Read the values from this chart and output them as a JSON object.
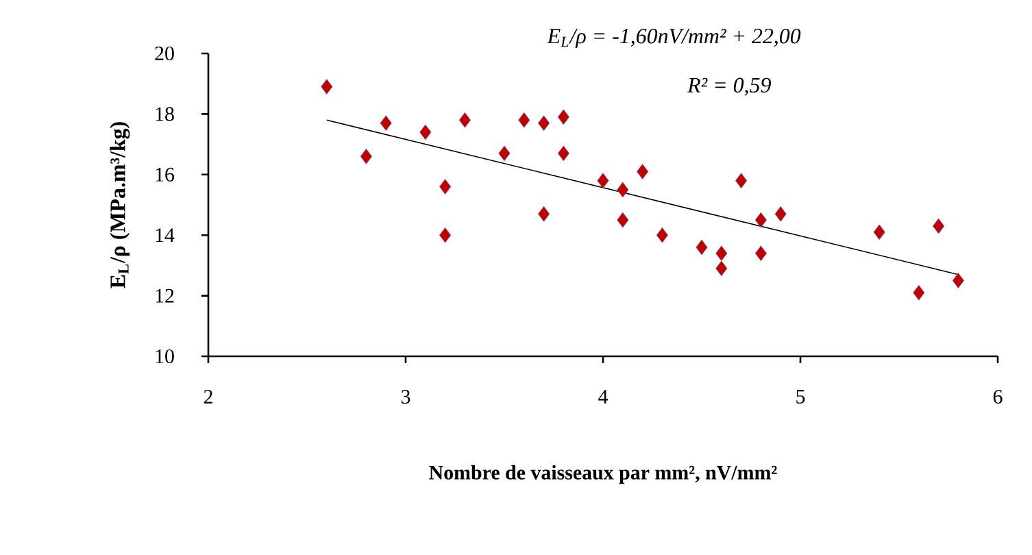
{
  "chart_data": {
    "type": "scatter",
    "xlabel": "Nombre de vaisseaux par mm², nV/mm²",
    "ylabel": "E$_{L}$/ρ (MPa.m³/kg)",
    "xlim": [
      2,
      6
    ],
    "xticks": [
      2,
      3,
      4,
      5,
      6
    ],
    "ylim": [
      10,
      20
    ],
    "yticks": [
      10,
      12,
      14,
      16,
      18,
      20
    ],
    "grid": false,
    "annotations": [
      "E$_{L}$/ρ = -1,60nV/mm² + 22,00",
      "R² = 0,59"
    ],
    "series": [
      {
        "color": "#c00000",
        "marker": "diamond",
        "x": [
          2.6,
          2.8,
          2.9,
          3.1,
          3.2,
          3.2,
          3.3,
          3.5,
          3.6,
          3.7,
          3.7,
          3.8,
          3.8,
          4.0,
          4.1,
          4.1,
          4.2,
          4.3,
          4.5,
          4.6,
          4.6,
          4.7,
          4.8,
          4.8,
          4.9,
          5.4,
          5.6,
          5.7,
          5.8
        ],
        "values": [
          18.9,
          16.6,
          17.7,
          17.4,
          15.6,
          14.0,
          17.8,
          16.7,
          17.8,
          17.7,
          14.7,
          17.9,
          16.7,
          15.8,
          15.5,
          14.5,
          16.1,
          14.0,
          13.6,
          13.4,
          12.9,
          15.8,
          14.5,
          13.4,
          14.7,
          14.1,
          12.1,
          14.3,
          12.5
        ]
      },
      {
        "type": "line",
        "color": "#000000",
        "marker": "none",
        "x": [
          2.6,
          5.8
        ],
        "values": [
          17.8,
          12.7
        ]
      }
    ]
  }
}
